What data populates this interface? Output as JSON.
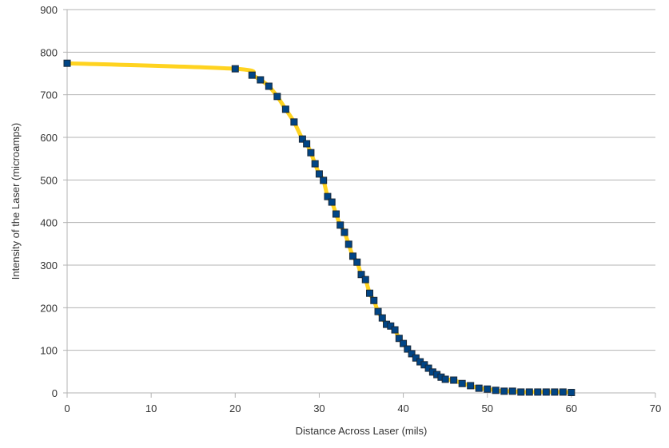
{
  "chart_data": {
    "type": "line",
    "title": "",
    "xlabel": "Distance Across Laser (mils)",
    "ylabel": "Intensity of the Laser (microamps)",
    "xlim": [
      0,
      70
    ],
    "ylim": [
      0,
      900
    ],
    "xticks": [
      0,
      10,
      20,
      30,
      40,
      50,
      60,
      70
    ],
    "yticks": [
      0,
      100,
      200,
      300,
      400,
      500,
      600,
      700,
      800,
      900
    ],
    "grid": "horizontal",
    "legend": "none",
    "line_color": "#ffd320",
    "marker_color": "#004586",
    "marker": "square",
    "series": [
      {
        "x": [
          0,
          20,
          22,
          23,
          24,
          25,
          26,
          27,
          28,
          28.5,
          29,
          29.5,
          30,
          30.5,
          31,
          31.5,
          32,
          32.5,
          33,
          33.5,
          34,
          34.5,
          35,
          35.5,
          36,
          36.5,
          37,
          37.5,
          38,
          38.5,
          39,
          39.5,
          40,
          40.5,
          41,
          41.5,
          42,
          42.5,
          43,
          43.5,
          44,
          44.5,
          45,
          46,
          47,
          48,
          49,
          50,
          51,
          52,
          53,
          54,
          55,
          56,
          57,
          58,
          59,
          60
        ],
        "y": [
          774,
          761,
          746,
          735,
          720,
          696,
          666,
          636,
          596,
          585,
          564,
          538,
          514,
          499,
          461,
          448,
          420,
          394,
          377,
          349,
          321,
          307,
          278,
          266,
          234,
          217,
          191,
          176,
          161,
          157,
          148,
          128,
          116,
          103,
          92,
          82,
          73,
          66,
          58,
          49,
          43,
          37,
          32,
          30,
          22,
          17,
          11,
          9,
          6,
          4,
          4,
          2,
          2,
          2,
          2,
          2,
          2,
          1
        ]
      }
    ]
  }
}
